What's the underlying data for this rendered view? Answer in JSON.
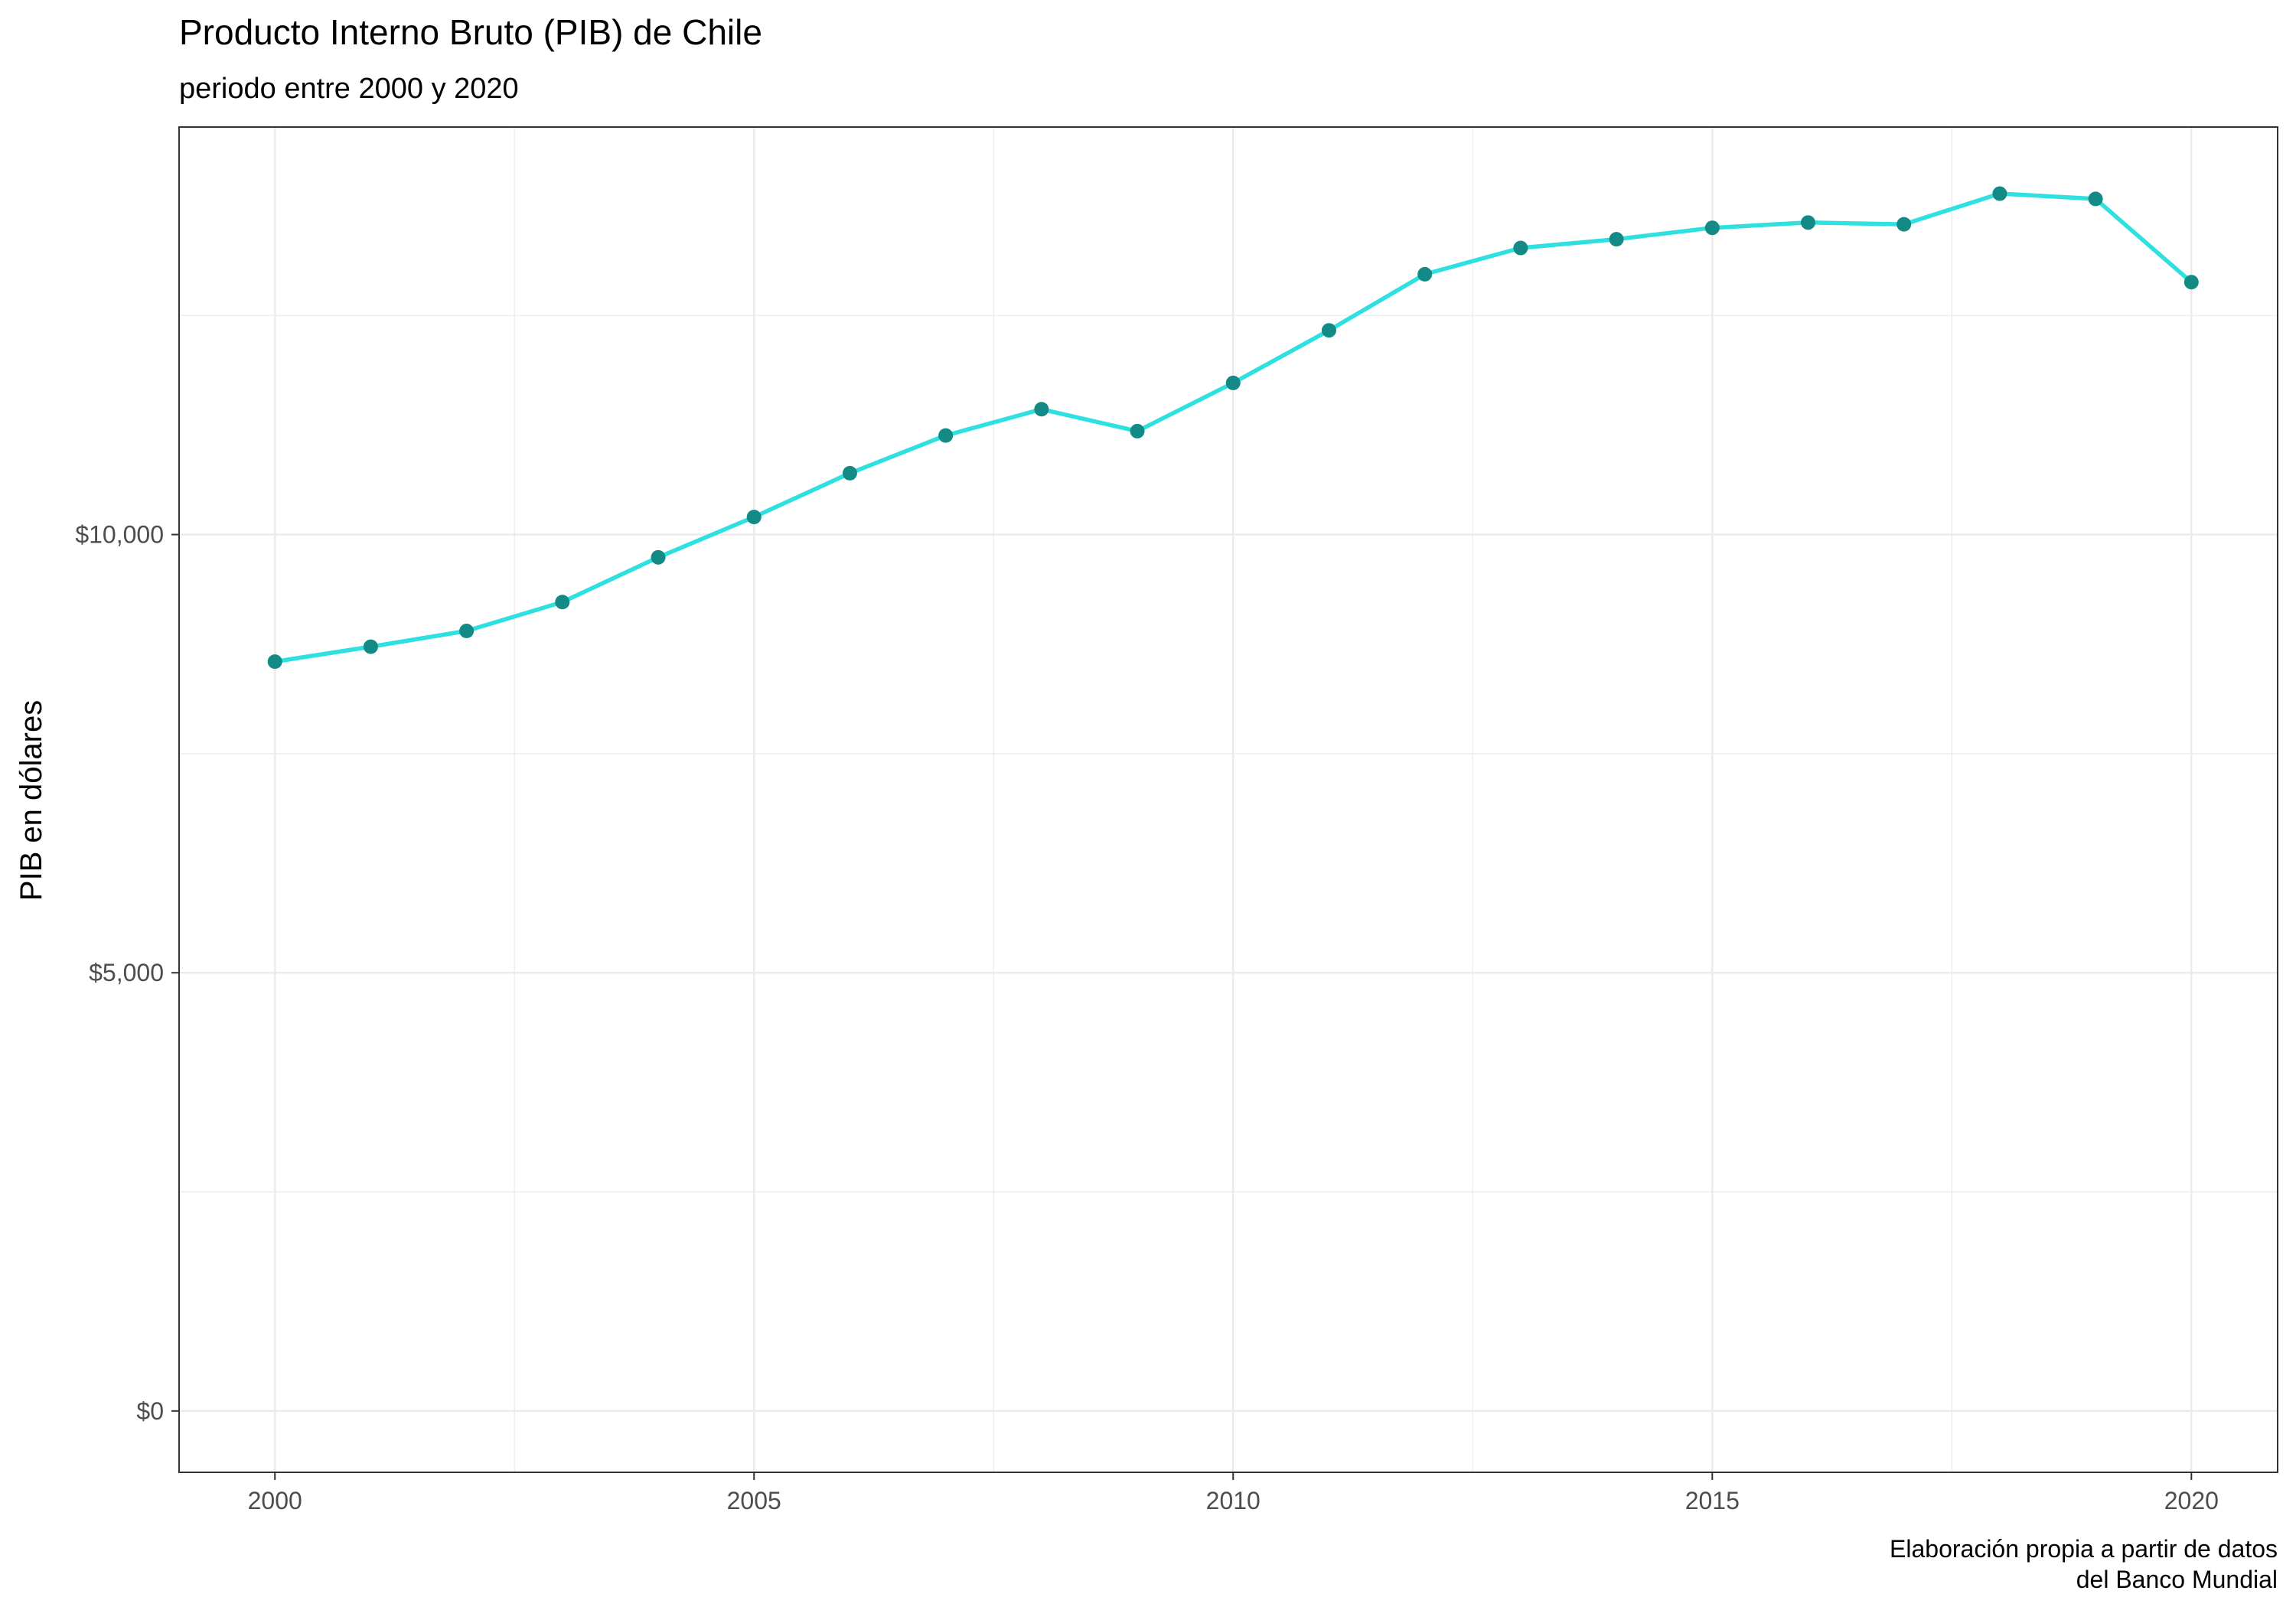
{
  "chart_data": {
    "type": "line",
    "title": "Producto Interno Bruto (PIB) de Chile",
    "subtitle": "periodo entre 2000 y 2020",
    "xlabel": "",
    "ylabel": "PIB en dólares",
    "caption_line1": "Elaboración propia a partir de datos",
    "caption_line2": "del Banco Mundial",
    "x": [
      2000,
      2001,
      2002,
      2003,
      2004,
      2005,
      2006,
      2007,
      2008,
      2009,
      2010,
      2011,
      2012,
      2013,
      2014,
      2015,
      2016,
      2017,
      2018,
      2019,
      2020
    ],
    "series": [
      {
        "values": [
          8550,
          8720,
          8900,
          9230,
          9740,
          10200,
          10700,
          11130,
          11430,
          11180,
          11730,
          12330,
          12970,
          13270,
          13370,
          13500,
          13560,
          13540,
          13890,
          13830,
          12880
        ]
      }
    ],
    "xlim": [
      1999,
      2020.9
    ],
    "ylim": [
      -700,
      14650
    ],
    "x_ticks": [
      2000,
      2005,
      2010,
      2015,
      2020
    ],
    "x_tick_labels": [
      "2000",
      "2005",
      "2010",
      "2015",
      "2020"
    ],
    "y_ticks": [
      0,
      5000,
      10000
    ],
    "y_tick_labels": [
      "$0",
      "$5,000",
      "$10,000"
    ],
    "grid": true,
    "legend": "none",
    "line_color": "#2ee0e0",
    "point_color": "#138a86",
    "grid_color": "#ebebeb",
    "border_color": "#333333"
  }
}
